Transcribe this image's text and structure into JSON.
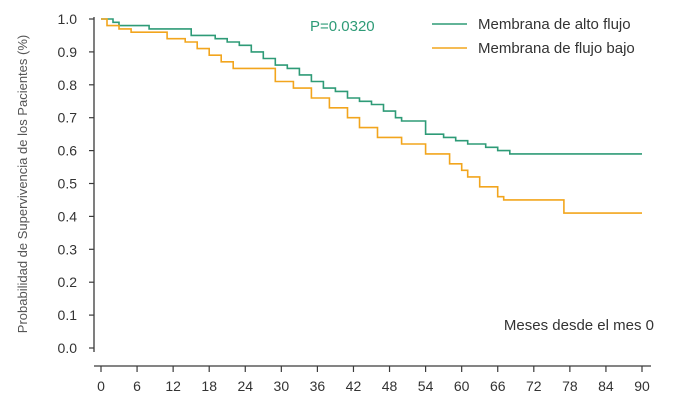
{
  "chart_data": {
    "type": "line",
    "step": true,
    "title": "",
    "xlabel": "Meses desde el mes 0",
    "ylabel": "Probabilidad de Supervivencia de los Pacientes (%)",
    "annotation": "P=0.0320",
    "xlim": [
      0,
      90
    ],
    "ylim": [
      0,
      1.0
    ],
    "x_ticks": [
      0,
      6,
      12,
      18,
      24,
      30,
      36,
      42,
      48,
      54,
      60,
      66,
      72,
      78,
      84,
      90
    ],
    "y_ticks": [
      "0.0",
      "0.1",
      "0.2",
      "0.3",
      "0.4",
      "0.5",
      "0.6",
      "0.7",
      "0.8",
      "0.9",
      "1.0"
    ],
    "legend_position": "top-right",
    "series": [
      {
        "name": "Membrana de alto flujo",
        "color": "#2e9b77",
        "x": [
          0,
          2,
          3,
          8,
          15,
          19,
          21,
          23,
          25,
          27,
          29,
          31,
          33,
          35,
          37,
          39,
          41,
          43,
          45,
          47,
          49,
          50,
          54,
          57,
          59,
          61,
          62,
          64,
          66,
          68,
          90
        ],
        "y": [
          1.0,
          0.99,
          0.98,
          0.97,
          0.95,
          0.94,
          0.93,
          0.92,
          0.9,
          0.88,
          0.86,
          0.85,
          0.83,
          0.81,
          0.79,
          0.78,
          0.76,
          0.75,
          0.74,
          0.72,
          0.7,
          0.69,
          0.65,
          0.64,
          0.63,
          0.62,
          0.62,
          0.61,
          0.6,
          0.59,
          0.59
        ]
      },
      {
        "name": "Membrana de flujo bajo",
        "color": "#f2a51d",
        "x": [
          0,
          1,
          3,
          5,
          11,
          14,
          16,
          18,
          20,
          22,
          24,
          29,
          32,
          35,
          38,
          41,
          43,
          46,
          50,
          54,
          58,
          60,
          61,
          63,
          66,
          67,
          77,
          90
        ],
        "y": [
          1.0,
          0.98,
          0.97,
          0.96,
          0.94,
          0.93,
          0.91,
          0.89,
          0.87,
          0.85,
          0.85,
          0.81,
          0.79,
          0.76,
          0.73,
          0.7,
          0.67,
          0.64,
          0.62,
          0.59,
          0.56,
          0.54,
          0.52,
          0.49,
          0.46,
          0.45,
          0.41,
          0.41
        ]
      }
    ]
  }
}
